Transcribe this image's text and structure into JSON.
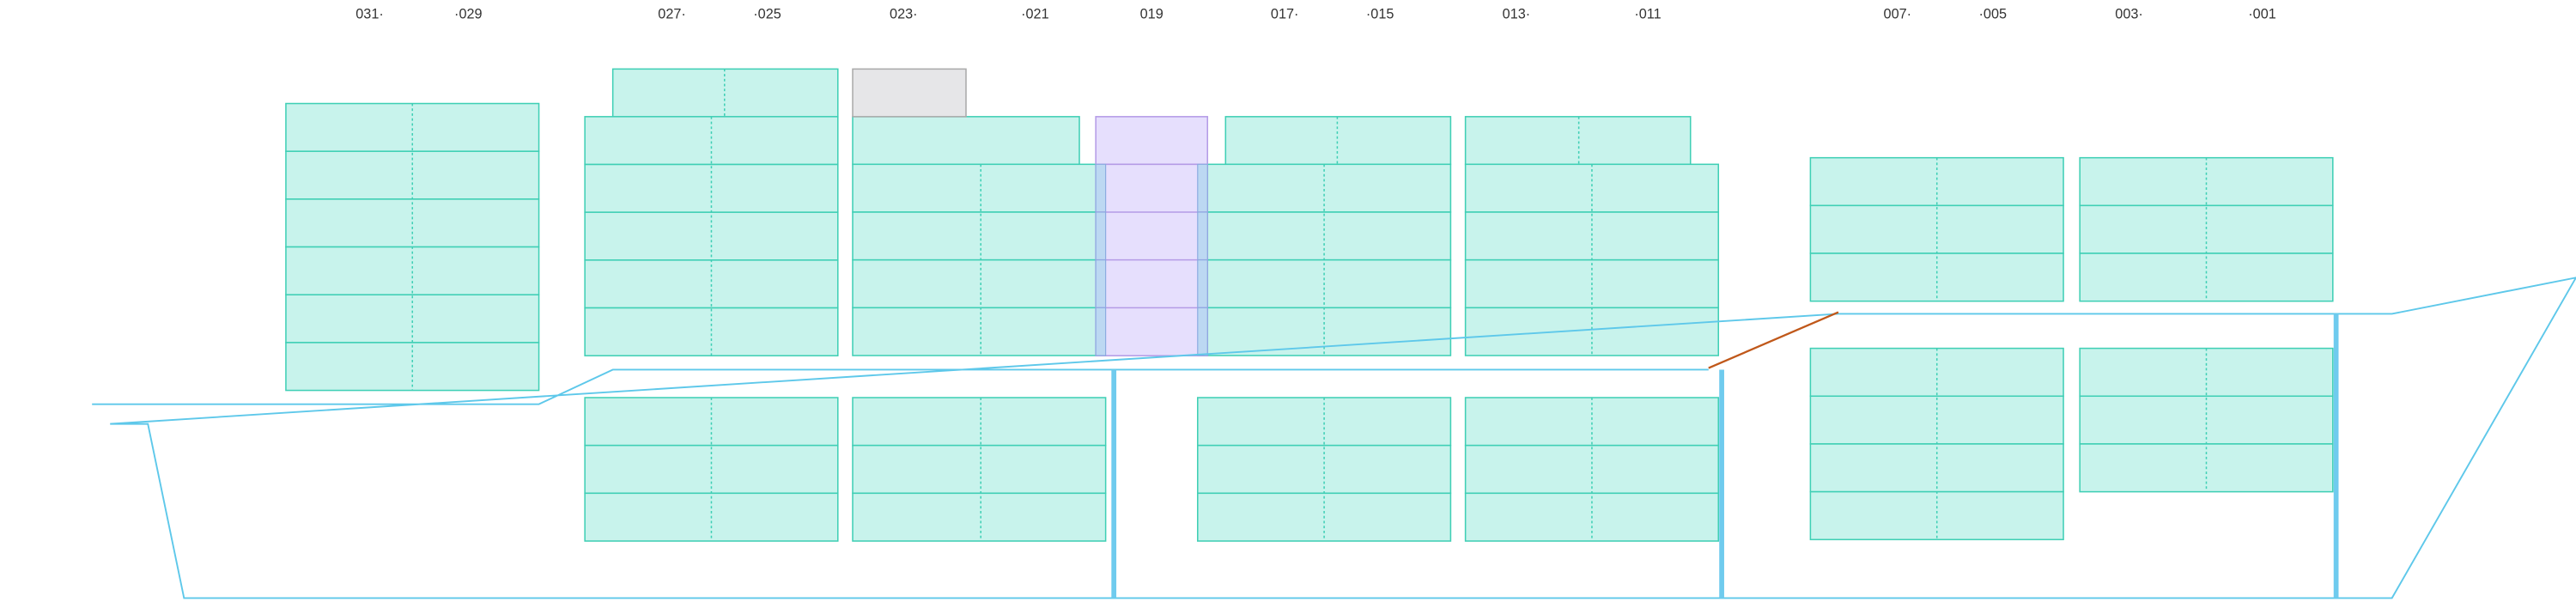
{
  "bay_labels": [
    "031·",
    "·029",
    "027·",
    "·025",
    "023·",
    "·021",
    "019",
    "017·",
    "·015",
    "013·",
    "·011",
    "007·",
    "·005",
    "003·",
    "·001"
  ]
}
